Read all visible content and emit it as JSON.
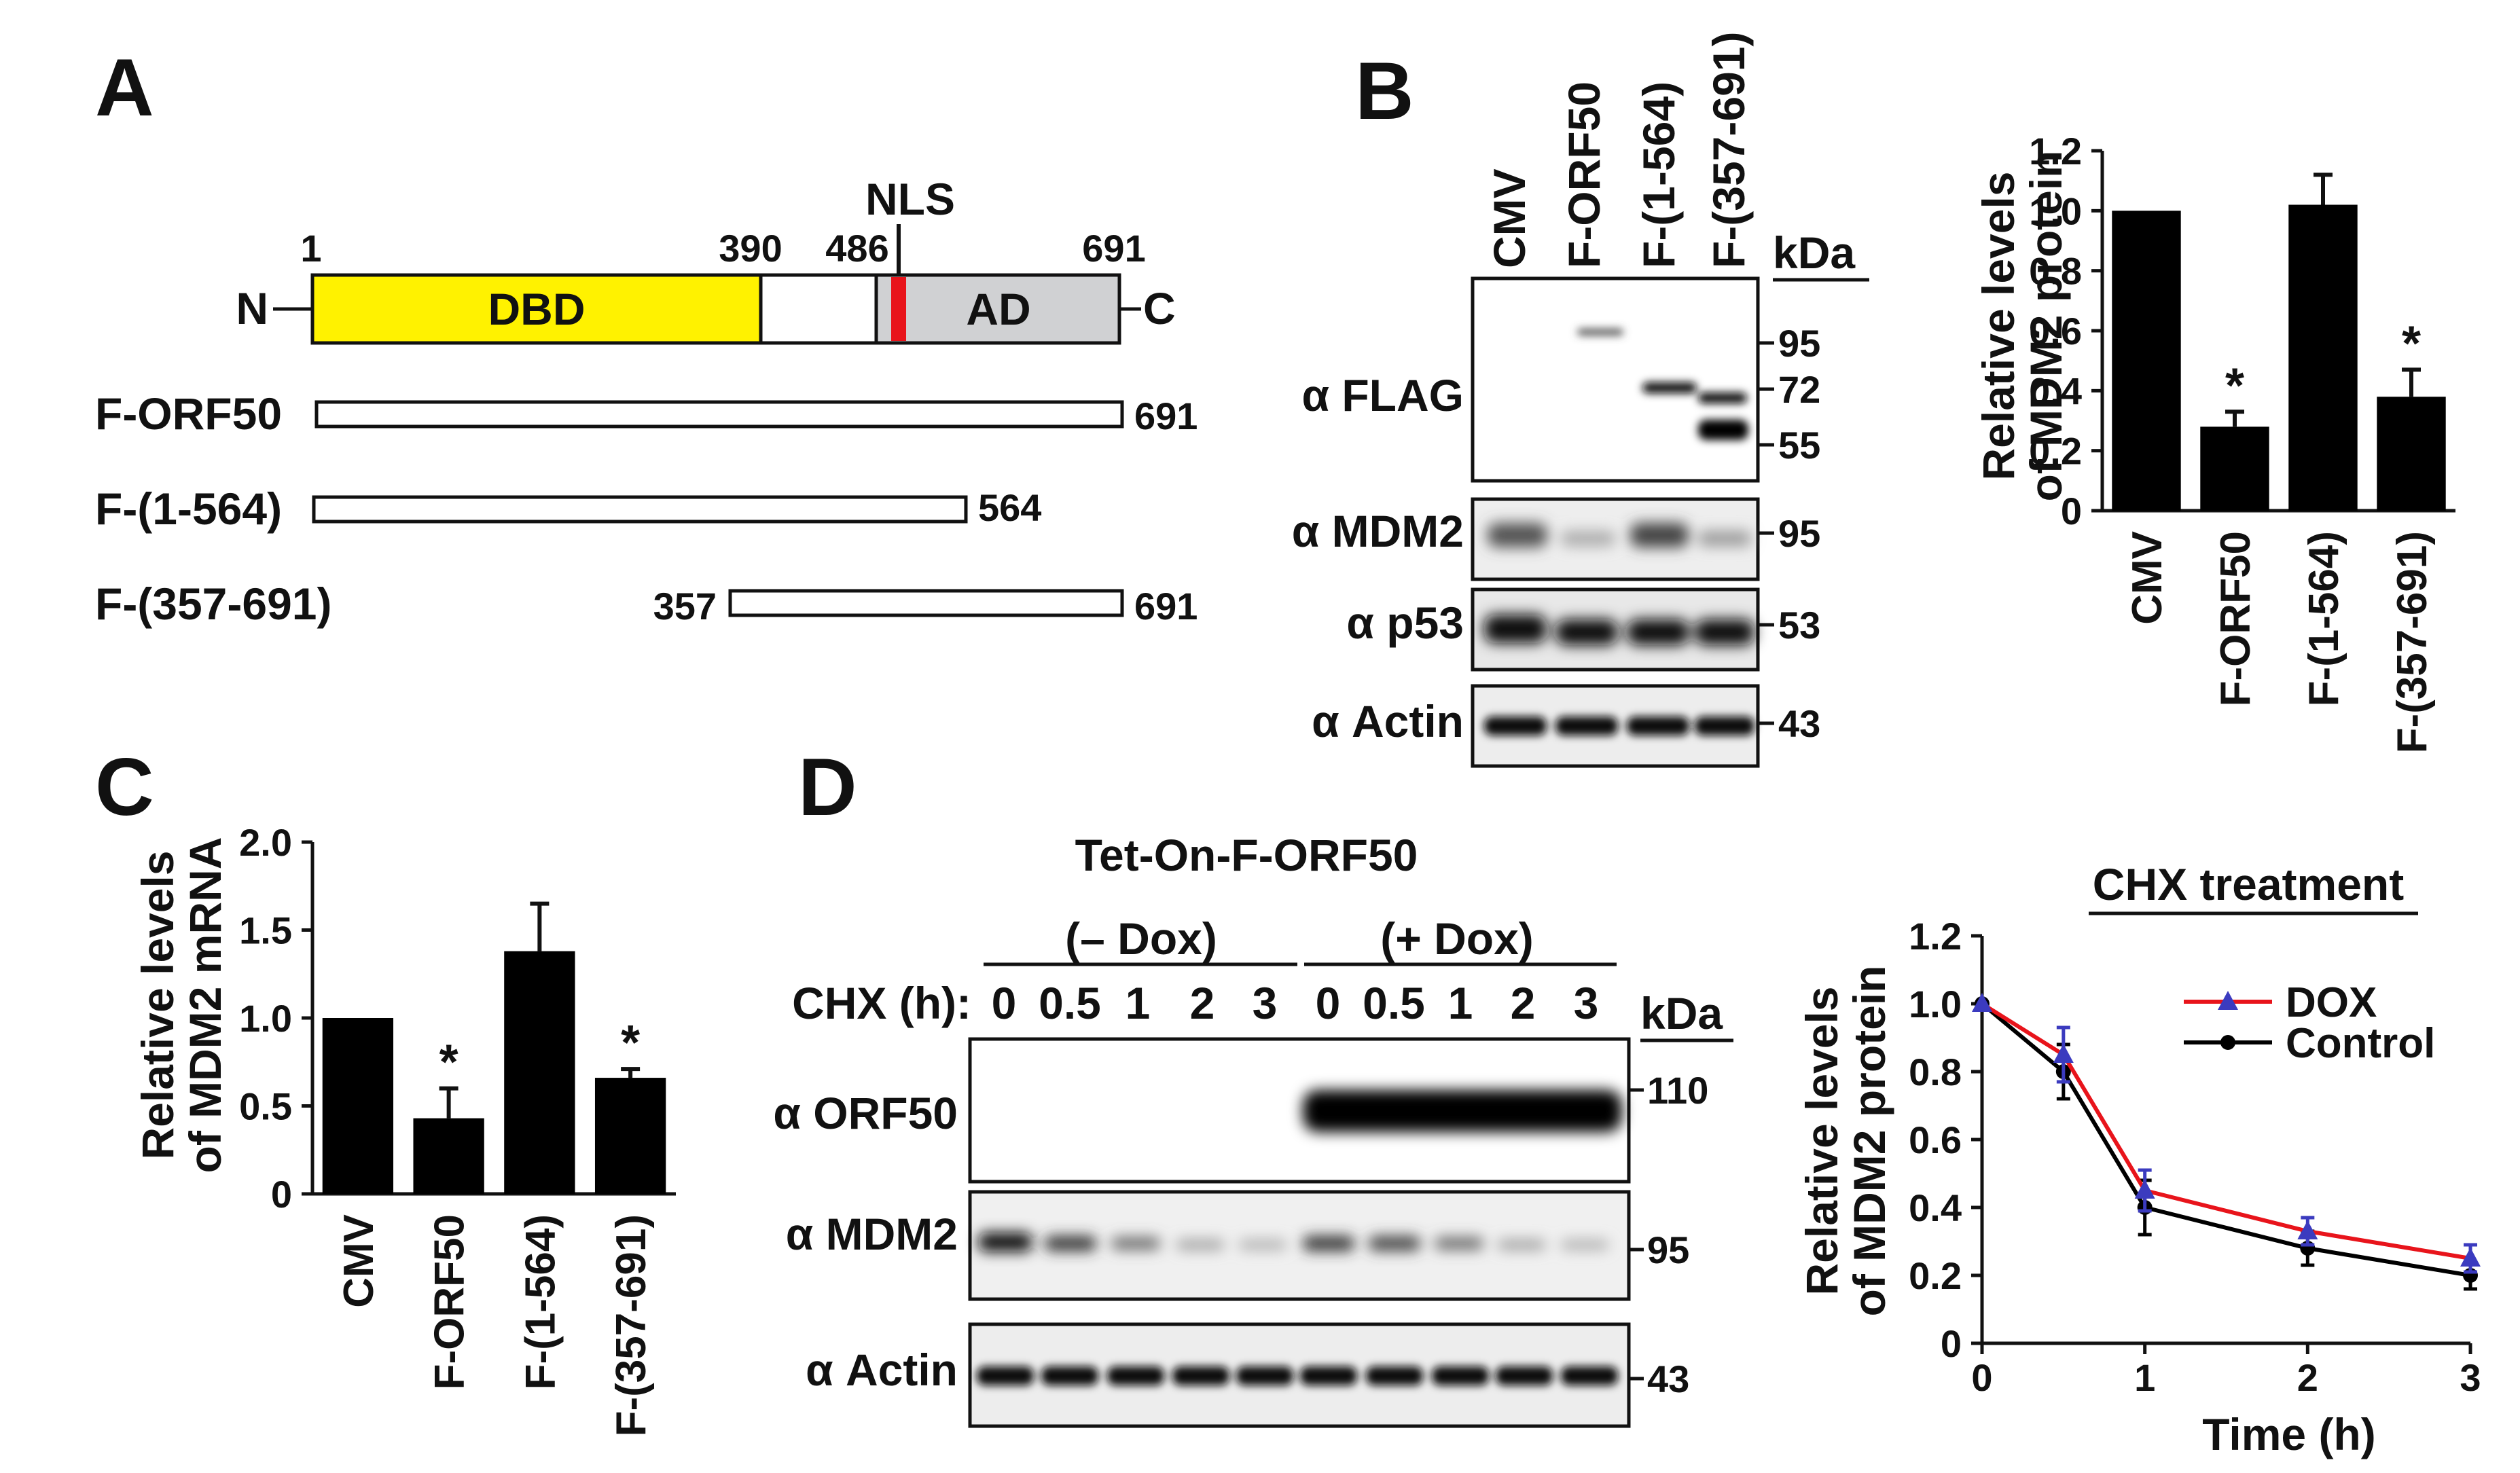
{
  "panels": {
    "A": "A",
    "B": "B",
    "C": "C",
    "D": "D"
  },
  "panelA": {
    "nls": "NLS",
    "n_term": "N",
    "c_term": "C",
    "dbd": "DBD",
    "ad": "AD",
    "pos_1": "1",
    "pos_390": "390",
    "pos_486": "486",
    "pos_691": "691",
    "constructs": [
      {
        "name": "F-ORF50",
        "end": "691"
      },
      {
        "name": "F-(1-564)",
        "end": "564"
      },
      {
        "name": "F-(357-691)",
        "start": "357",
        "end": "691"
      }
    ]
  },
  "panelB": {
    "lanes": [
      "CMV",
      "F-ORF50",
      "F-(1-564)",
      "F-(357-691)"
    ],
    "kda": "kDa",
    "blots": [
      {
        "label": "α FLAG",
        "markers": [
          "95",
          "72",
          "55"
        ]
      },
      {
        "label": "α MDM2",
        "markers": [
          "95"
        ]
      },
      {
        "label": "α p53",
        "markers": [
          "53"
        ]
      },
      {
        "label": "α Actin",
        "markers": [
          "43"
        ]
      }
    ]
  },
  "panelD_blot": {
    "title": "Tet-On-F-ORF50",
    "group_minus": "(– Dox)",
    "group_plus": "(+ Dox)",
    "chx_label": "CHX (h):",
    "times": [
      "0",
      "0.5",
      "1",
      "2",
      "3",
      "0",
      "0.5",
      "1",
      "2",
      "3"
    ],
    "kda": "kDa",
    "blots": [
      {
        "label": "α ORF50",
        "marker": "110"
      },
      {
        "label": "α MDM2",
        "marker": "95"
      },
      {
        "label": "α Actin",
        "marker": "43"
      }
    ]
  },
  "chart_data": [
    {
      "type": "bar",
      "panel": "B",
      "ylabel": "Relative levels of MDM2 protein",
      "ylabel_lines": [
        "Relative levels",
        "of MDM2 protein"
      ],
      "categories": [
        "CMV",
        "F-ORF50",
        "F-(1-564)",
        "F-(357-691)"
      ],
      "values": [
        1.0,
        0.28,
        1.02,
        0.38
      ],
      "errors": [
        0.0,
        0.05,
        0.1,
        0.09
      ],
      "significance": [
        "",
        "*",
        "",
        "*"
      ],
      "ylim": [
        0,
        1.2
      ],
      "yticks": [
        "0",
        "0.2",
        "0.4",
        "0.6",
        "0.8",
        "1.0",
        "1.2"
      ],
      "color": "#000000"
    },
    {
      "type": "bar",
      "panel": "C",
      "ylabel": "Relative levels of MDM2 mRNA",
      "ylabel_lines": [
        "Relative levels",
        "of MDM2 mRNA"
      ],
      "categories": [
        "CMV",
        "F-ORF50",
        "F-(1-564)",
        "F-(357-691)"
      ],
      "values": [
        1.0,
        0.43,
        1.38,
        0.66
      ],
      "errors": [
        0.0,
        0.17,
        0.27,
        0.05
      ],
      "significance": [
        "",
        "*",
        "",
        "*"
      ],
      "ylim": [
        0,
        2.0
      ],
      "yticks": [
        "0",
        "0.5",
        "1.0",
        "1.5",
        "2.0"
      ],
      "color": "#000000"
    },
    {
      "type": "line",
      "panel": "D",
      "title": "CHX treatment",
      "xlabel": "Time (h)",
      "ylabel": "Relative levels of MDM2 protein",
      "ylabel_lines": [
        "Relative levels",
        "of MDM2 protein"
      ],
      "x": [
        0,
        0.5,
        1,
        2,
        3
      ],
      "xticks": [
        "0",
        "1",
        "2",
        "3"
      ],
      "yticks": [
        "0",
        "0.2",
        "0.4",
        "0.6",
        "0.8",
        "1.0",
        "1.2"
      ],
      "ylim": [
        0,
        1.2
      ],
      "xlim": [
        0,
        3
      ],
      "legend_position": "top-right",
      "series": [
        {
          "name": "DOX",
          "values": [
            1.0,
            0.85,
            0.45,
            0.33,
            0.25
          ],
          "errors": [
            0,
            0.08,
            0.06,
            0.04,
            0.04
          ],
          "color": "#e8141b",
          "marker_color": "#3b3bbf",
          "marker": "triangle"
        },
        {
          "name": "Control",
          "values": [
            1.0,
            0.8,
            0.4,
            0.28,
            0.2
          ],
          "errors": [
            0,
            0.08,
            0.08,
            0.05,
            0.04
          ],
          "color": "#000000",
          "marker_color": "#000000",
          "marker": "circle"
        }
      ]
    }
  ]
}
